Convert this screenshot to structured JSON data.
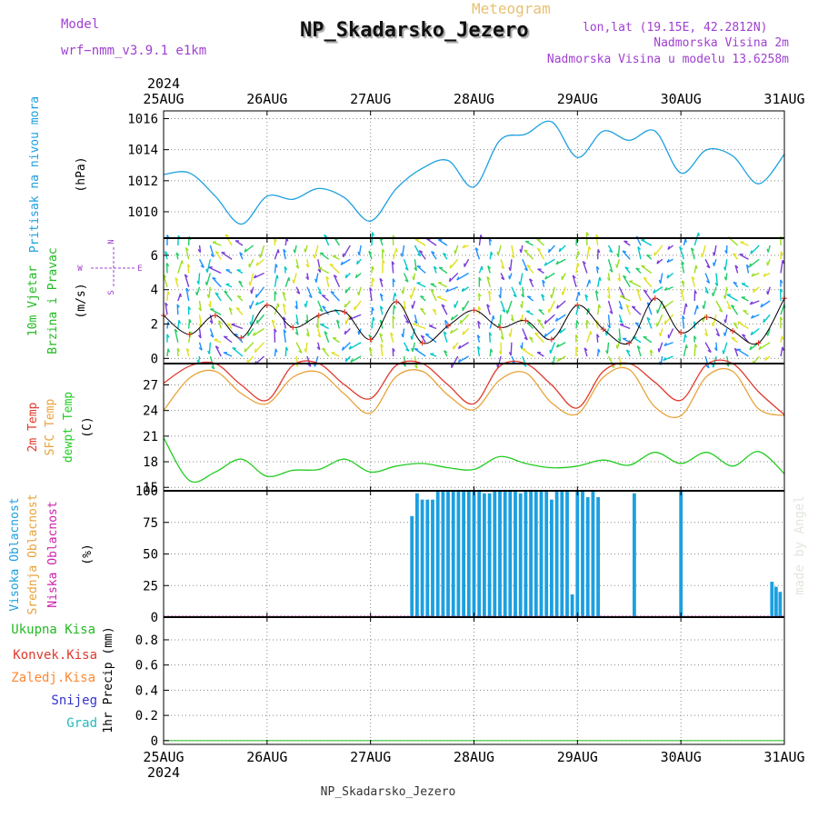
{
  "header": {
    "model_label": "Model",
    "model_name": "wrf−nmm_v3.9.1  e1km",
    "meteogram_label": "Meteogram",
    "station_title": "NP_Skadarsko_Jezero",
    "lonlat": "lon,lat (19.15E, 42.2812N)",
    "elevation": "Nadmorska Visina 2m",
    "model_elevation": "Nadmorska Visina u modelu 13.6258m",
    "footer_station": "NP_Skadarsko_Jezero",
    "watermark": "made by Angel"
  },
  "colors": {
    "pressure": "#1ba0e0",
    "temp": "#e0392c",
    "sfc_temp": "#e8a33a",
    "dewpt": "#22cc22",
    "cloud_high": "#1ba0e0",
    "cloud_mid": "#e8a33a",
    "cloud_low": "#cc22aa",
    "total_precip": "#22bb22",
    "conv_precip": "#e0392c",
    "freezing_precip": "#ff8833",
    "snow": "#3333cc",
    "hail": "#22bbbb",
    "wind_label": "#22bb22",
    "model_text": "#a040d0"
  },
  "chart_data": [
    {
      "type": "line",
      "panel": "pressure",
      "title": "",
      "ylabel_outer": "Pritisak na nivou mora",
      "ylabel_unit": "(hPa)",
      "x_categories": [
        "25AUG",
        "26AUG",
        "27AUG",
        "28AUG",
        "29AUG",
        "30AUG",
        "31AUG"
      ],
      "top_year": "2024",
      "ylim": [
        1008.3,
        1016.5
      ],
      "yticks": [
        1010,
        1012,
        1014,
        1016
      ],
      "grid": true,
      "x": [
        0,
        0.25,
        0.5,
        0.75,
        1,
        1.25,
        1.5,
        1.75,
        2,
        2.25,
        2.5,
        2.75,
        3,
        3.25,
        3.5,
        3.75,
        4,
        4.25,
        4.5,
        4.75,
        5,
        5.25,
        5.5,
        5.75,
        6
      ],
      "series": [
        {
          "values": [
            1012.4,
            1012.5,
            1011.0,
            1009.2,
            1011.0,
            1010.8,
            1011.5,
            1010.9,
            1009.4,
            1011.5,
            1012.8,
            1013.3,
            1011.6,
            1014.6,
            1015.0,
            1015.8,
            1013.5,
            1015.2,
            1014.6,
            1015.2,
            1012.5,
            1014.0,
            1013.6,
            1011.8,
            1013.7
          ]
        }
      ]
    },
    {
      "type": "line",
      "panel": "wind",
      "ylabel_outer": [
        "10m Vjetar",
        "Brzina i Pravac"
      ],
      "ylabel_unit": "(m/s)",
      "compass": {
        "n": "N",
        "s": "S",
        "e": "E",
        "w": "W"
      },
      "ylim": [
        -0.3,
        7.0
      ],
      "yticks": [
        0,
        2,
        4,
        6
      ],
      "grid": true,
      "x": [
        0,
        0.25,
        0.5,
        0.75,
        1,
        1.25,
        1.5,
        1.75,
        2,
        2.25,
        2.5,
        2.75,
        3,
        3.25,
        3.5,
        3.75,
        4,
        4.25,
        4.5,
        4.75,
        5,
        5.25,
        5.5,
        5.75,
        6
      ],
      "series": [
        {
          "name": "speed",
          "values": [
            2.5,
            1.4,
            2.5,
            1.2,
            3.1,
            1.8,
            2.5,
            2.7,
            1.1,
            3.3,
            0.9,
            1.9,
            2.8,
            1.8,
            2.2,
            1.1,
            3.1,
            1.7,
            0.9,
            3.5,
            1.5,
            2.4,
            1.6,
            0.9,
            3.5
          ]
        }
      ]
    },
    {
      "type": "line",
      "panel": "temperature",
      "ylabel_outer": [
        "2m Temp",
        "SFC Temp",
        "dewpt Temp"
      ],
      "ylabel_unit": "(C)",
      "ylim": [
        14.6,
        29.5
      ],
      "yticks": [
        15,
        18,
        21,
        24,
        27
      ],
      "grid": true,
      "x": [
        0,
        0.25,
        0.5,
        0.75,
        1,
        1.25,
        1.5,
        1.75,
        2,
        2.25,
        2.5,
        2.75,
        3,
        3.25,
        3.5,
        3.75,
        4,
        4.25,
        4.5,
        4.75,
        5,
        5.25,
        5.5,
        5.75,
        6
      ],
      "series": [
        {
          "name": "2m Temp",
          "values": [
            27.2,
            29.2,
            29.5,
            27.0,
            25.2,
            29.3,
            29.5,
            27.0,
            25.4,
            29.3,
            29.5,
            27.0,
            24.8,
            29.2,
            29.5,
            27.0,
            24.3,
            28.6,
            29.5,
            27.3,
            25.2,
            29.4,
            29.5,
            26.2,
            23.5
          ]
        },
        {
          "name": "SFC Temp",
          "values": [
            24.0,
            27.8,
            28.6,
            26.0,
            24.8,
            27.9,
            28.5,
            25.9,
            23.7,
            28.0,
            28.6,
            25.8,
            24.1,
            27.6,
            28.4,
            24.9,
            23.6,
            27.9,
            28.8,
            24.4,
            23.4,
            28.0,
            28.6,
            24.2,
            23.4
          ]
        },
        {
          "name": "dewpt Temp",
          "values": [
            20.8,
            15.8,
            16.8,
            18.3,
            16.3,
            17.0,
            17.1,
            18.3,
            16.8,
            17.5,
            17.8,
            17.3,
            17.1,
            18.6,
            17.8,
            17.3,
            17.5,
            18.2,
            17.6,
            19.1,
            17.8,
            19.1,
            17.5,
            19.2,
            16.6
          ]
        }
      ]
    },
    {
      "type": "bar",
      "panel": "clouds",
      "ylabel_outer": [
        "Visoka Oblacnost",
        "Srednja Oblacnost",
        "Niska Oblacnost"
      ],
      "ylabel_unit": "(%)",
      "ylim": [
        0,
        100
      ],
      "yticks": [
        0,
        25,
        50,
        75,
        100
      ],
      "grid": true,
      "x": [
        1.5,
        1.55,
        1.6,
        1.65,
        1.7,
        1.75,
        1.8,
        1.85,
        1.9,
        1.95,
        2.0,
        2.05,
        2.1,
        2.15,
        2.2,
        2.25,
        2.4,
        2.45,
        2.5,
        2.55,
        2.6,
        2.65,
        2.7,
        2.75,
        2.8,
        2.85,
        2.9,
        2.95,
        3.0,
        3.05,
        3.1,
        3.15,
        3.2,
        3.25,
        3.3,
        3.35,
        3.4,
        3.45,
        3.5,
        3.55,
        3.6,
        3.65,
        3.7,
        3.75,
        3.8,
        3.85,
        3.9,
        3.95,
        4.0,
        4.05,
        4.1,
        4.15,
        4.2,
        4.55,
        5.0,
        5.88,
        5.92,
        5.96
      ],
      "series": [
        {
          "name": "high",
          "values": [
            0,
            0,
            0,
            0,
            0,
            0,
            0,
            0,
            0,
            0,
            0,
            0,
            0,
            0,
            0,
            0,
            80,
            98,
            93,
            93,
            93,
            100,
            100,
            100,
            100,
            100,
            100,
            100,
            100,
            100,
            98,
            98,
            100,
            100,
            100,
            100,
            100,
            98,
            100,
            100,
            100,
            100,
            100,
            93,
            100,
            100,
            100,
            18,
            100,
            100,
            95,
            100,
            95,
            98,
            100,
            28,
            24,
            20
          ]
        }
      ]
    },
    {
      "type": "line",
      "panel": "precip",
      "ylabel_outer_items": [
        "Ukupna Kisa",
        "Konvek.Kisa",
        "Zaledj.Kisa",
        "Snijeg",
        "Grad"
      ],
      "ylabel_unit": "1hr Precip (mm)",
      "ylim": [
        -0.03,
        0.98
      ],
      "yticks": [
        0,
        0.2,
        0.4,
        0.6,
        0.8
      ],
      "grid": true,
      "x_categories": [
        "25AUG",
        "26AUG",
        "27AUG",
        "28AUG",
        "29AUG",
        "30AUG",
        "31AUG"
      ],
      "bottom_year": "2024",
      "series": [
        {
          "name": "Ukupna Kisa",
          "values": [
            0,
            0,
            0,
            0,
            0,
            0,
            0
          ]
        }
      ]
    }
  ]
}
